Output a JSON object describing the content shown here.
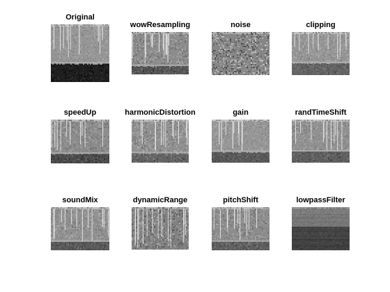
{
  "figure": {
    "panels": [
      {
        "title": "Original",
        "style": "original"
      },
      {
        "title": "wowResampling",
        "style": "wow"
      },
      {
        "title": "noise",
        "style": "noise"
      },
      {
        "title": "clipping",
        "style": "clip"
      },
      {
        "title": "speedUp",
        "style": "speed"
      },
      {
        "title": "harmonicDistortion",
        "style": "harm"
      },
      {
        "title": "gain",
        "style": "gain"
      },
      {
        "title": "randTimeShift",
        "style": "shift"
      },
      {
        "title": "soundMix",
        "style": "mix"
      },
      {
        "title": "dynamicRange",
        "style": "dyn"
      },
      {
        "title": "pitchShift",
        "style": "pitch"
      },
      {
        "title": "lowpassFilter",
        "style": "lowpass"
      }
    ]
  }
}
